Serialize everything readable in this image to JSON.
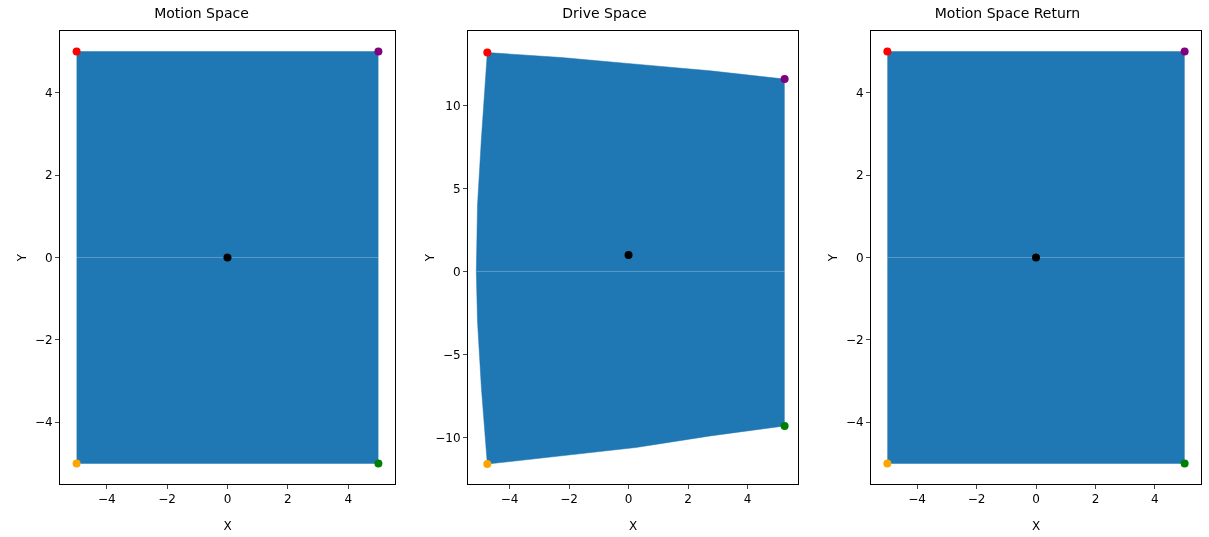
{
  "chart_data": [
    {
      "type": "scatter",
      "title": "Motion Space",
      "xlabel": "X",
      "ylabel": "Y",
      "xlim": [
        -5.55,
        5.55
      ],
      "ylim": [
        -5.5,
        5.5
      ],
      "xticks": [
        -4,
        -2,
        0,
        2,
        4
      ],
      "yticks": [
        -4,
        -2,
        0,
        2,
        4
      ],
      "grid": false,
      "series": [
        {
          "type": "area",
          "color": "#1f77b4",
          "marker": "none",
          "x": [
            -5,
            5
          ],
          "values": [
            5,
            5
          ]
        },
        {
          "type": "area",
          "color": "#1f77b4",
          "marker": "none",
          "x": [
            -5,
            5
          ],
          "values": [
            -5,
            -5
          ]
        },
        {
          "type": "scatter",
          "marker": "circle",
          "x": [
            -5,
            5,
            5,
            -5,
            0
          ],
          "values": [
            5,
            5,
            -5,
            -5,
            0
          ],
          "colors": [
            "#ff0000",
            "#800080",
            "#008000",
            "#ffa500",
            "#000000"
          ]
        }
      ]
    },
    {
      "type": "scatter",
      "title": "Drive Space",
      "xlabel": "X",
      "ylabel": "Y",
      "xlim": [
        -5.4,
        5.7
      ],
      "ylim": [
        -12.8,
        14.5
      ],
      "xticks": [
        -4,
        -2,
        0,
        2,
        4
      ],
      "yticks": [
        -10,
        -5,
        0,
        5,
        10
      ],
      "grid": false,
      "series": [
        {
          "type": "area",
          "color": "#1f77b4",
          "marker": "none",
          "x": [
            -5.12,
            -5.08,
            -4.95,
            -4.75,
            -2.25,
            0.25,
            2.75,
            5.25
          ],
          "values": [
            0,
            4,
            8,
            13.2,
            12.9,
            12.5,
            12.1,
            11.6
          ]
        },
        {
          "type": "area",
          "color": "#1f77b4",
          "marker": "none",
          "x": [
            -5.12,
            -5.08,
            -4.95,
            -4.75,
            -2.25,
            0.25,
            2.75,
            5.25
          ],
          "values": [
            0,
            -3,
            -7,
            -11.6,
            -11.1,
            -10.6,
            -9.9,
            -9.3
          ]
        },
        {
          "type": "scatter",
          "marker": "circle",
          "x": [
            -4.75,
            5.25,
            5.25,
            -4.75,
            0
          ],
          "values": [
            13.2,
            11.6,
            -9.3,
            -11.6,
            1
          ],
          "colors": [
            "#ff0000",
            "#800080",
            "#008000",
            "#ffa500",
            "#000000"
          ]
        }
      ]
    },
    {
      "type": "scatter",
      "title": "Motion Space Return",
      "xlabel": "X",
      "ylabel": "Y",
      "xlim": [
        -5.55,
        5.55
      ],
      "ylim": [
        -5.5,
        5.5
      ],
      "xticks": [
        -4,
        -2,
        0,
        2,
        4
      ],
      "yticks": [
        -4,
        -2,
        0,
        2,
        4
      ],
      "grid": false,
      "series": [
        {
          "type": "area",
          "color": "#1f77b4",
          "marker": "none",
          "x": [
            -5,
            5
          ],
          "values": [
            5,
            5
          ]
        },
        {
          "type": "area",
          "color": "#1f77b4",
          "marker": "none",
          "x": [
            -5,
            5
          ],
          "values": [
            -5,
            -5
          ]
        },
        {
          "type": "scatter",
          "marker": "circle",
          "x": [
            -5,
            5,
            5,
            -5,
            0
          ],
          "values": [
            5,
            5,
            -5,
            -5,
            0
          ],
          "colors": [
            "#ff0000",
            "#800080",
            "#008000",
            "#ffa500",
            "#000000"
          ]
        }
      ]
    }
  ]
}
